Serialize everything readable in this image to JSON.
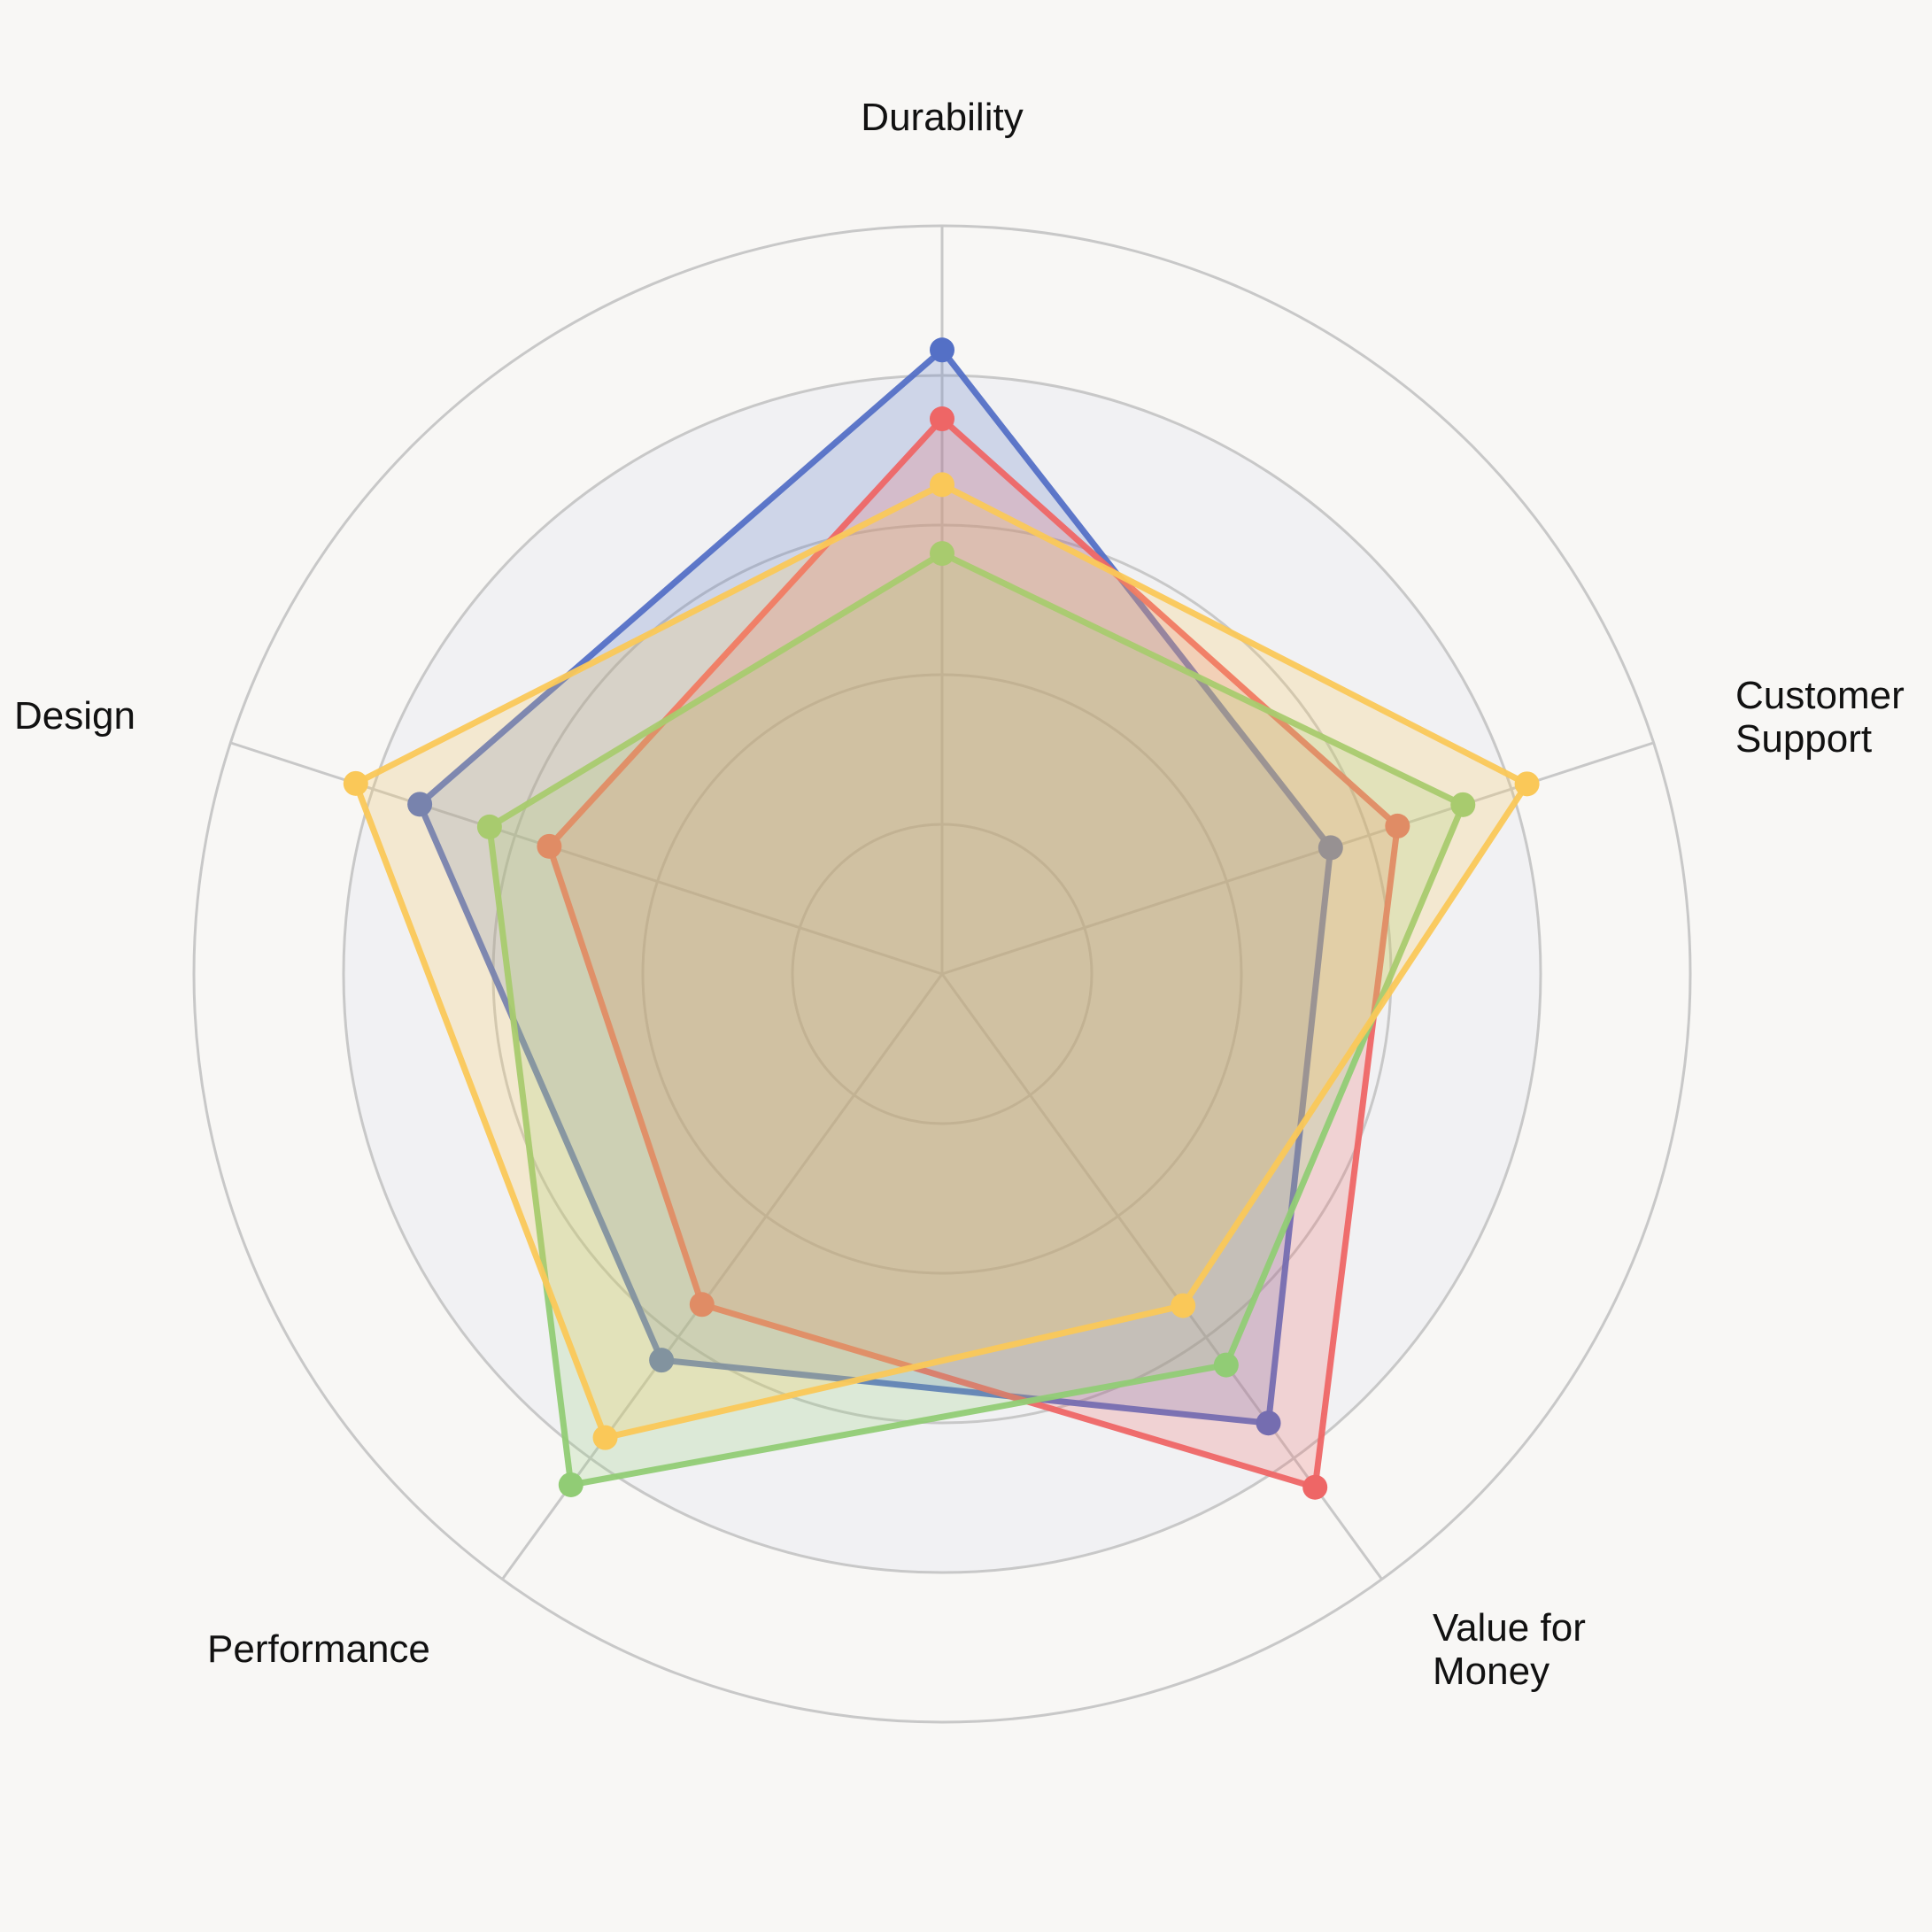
{
  "chart_data": {
    "type": "radar",
    "axes": [
      "Durability",
      "Customer Support",
      "Value for Money",
      "Performance",
      "Design"
    ],
    "axis_label_lines": [
      [
        "Durability"
      ],
      [
        "Customer",
        "Support"
      ],
      [
        "Value for",
        "Money"
      ],
      [
        "Performance"
      ],
      [
        "Design"
      ]
    ],
    "rmax": 5,
    "rings": [
      1,
      2,
      3,
      4,
      5
    ],
    "shaded_ring_limit": 4,
    "grid": true,
    "tick_labels_visible": false,
    "legend": "none",
    "series": [
      {
        "color": "#5470c6",
        "values": [
          4.17,
          2.73,
          3.71,
          3.19,
          3.67
        ]
      },
      {
        "color": "#ee6666",
        "values": [
          3.71,
          3.2,
          4.24,
          2.73,
          2.76
        ]
      },
      {
        "color": "#91cc75",
        "values": [
          2.81,
          3.66,
          3.23,
          4.22,
          3.18
        ]
      },
      {
        "color": "#fac858",
        "values": [
          3.27,
          4.11,
          2.74,
          3.83,
          4.12
        ]
      }
    ]
  },
  "colors": {
    "background": "#f8f7f5",
    "inner_disc": "#f1f1f3",
    "grid_line": "#c8c8c8"
  }
}
